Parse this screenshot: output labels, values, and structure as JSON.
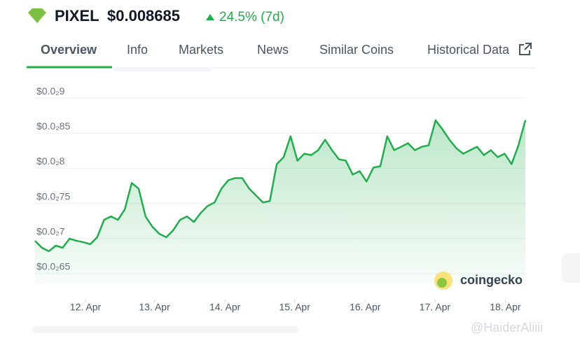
{
  "header": {
    "coin": "PIXEL",
    "price": "$0.008685",
    "change": "24.5% (7d)"
  },
  "tabs": [
    "Overview",
    "Info",
    "Markets",
    "News",
    "Similar Coins",
    "Historical Data"
  ],
  "chart_data": {
    "type": "line",
    "grid": true,
    "x": [
      0,
      1,
      2,
      3,
      4,
      5,
      6,
      7,
      8,
      9,
      10,
      11,
      12,
      13,
      14,
      15,
      16,
      17,
      18,
      19,
      20,
      21,
      22,
      23,
      24,
      25,
      26,
      27,
      28,
      29,
      30,
      31,
      32,
      33,
      34,
      35,
      36,
      37,
      38,
      39,
      40,
      41,
      42,
      43,
      44,
      45,
      46,
      47,
      48,
      49,
      50,
      51,
      52,
      53,
      54,
      55,
      56,
      57,
      58,
      59,
      60,
      61,
      62,
      63,
      64,
      65,
      66,
      67,
      68,
      69,
      70,
      71
    ],
    "series": [
      {
        "color": "#1fae4b",
        "values": [
          0.006967,
          0.006868,
          0.006818,
          0.006898,
          0.006868,
          0.006997,
          0.006967,
          0.006947,
          0.006918,
          0.007017,
          0.007265,
          0.007314,
          0.007265,
          0.007414,
          0.00779,
          0.007711,
          0.007314,
          0.007166,
          0.007066,
          0.007017,
          0.007116,
          0.007265,
          0.007314,
          0.007235,
          0.007364,
          0.007463,
          0.007513,
          0.007711,
          0.00783,
          0.00786,
          0.00786,
          0.007711,
          0.007612,
          0.007513,
          0.007533,
          0.008058,
          0.008158,
          0.008455,
          0.008108,
          0.008207,
          0.008187,
          0.008257,
          0.008406,
          0.008257,
          0.008128,
          0.008108,
          0.00791,
          0.007959,
          0.00781,
          0.008009,
          0.008029,
          0.008455,
          0.008257,
          0.008306,
          0.008356,
          0.008257,
          0.008306,
          0.008326,
          0.008683,
          0.008554,
          0.008406,
          0.008286,
          0.008207,
          0.008257,
          0.008306,
          0.008187,
          0.008257,
          0.008158,
          0.008207,
          0.008058,
          0.008326,
          0.008685
        ]
      }
    ],
    "xlim": [
      0,
      71
    ],
    "xticks": [
      {
        "value": 7.3,
        "label": "12. Apr"
      },
      {
        "value": 17.3,
        "label": "13. Apr"
      },
      {
        "value": 27.5,
        "label": "14. Apr"
      },
      {
        "value": 37.6,
        "label": "15. Apr"
      },
      {
        "value": 47.8,
        "label": "16. Apr"
      },
      {
        "value": 57.9,
        "label": "17. Apr"
      },
      {
        "value": 68.1,
        "label": "18. Apr"
      }
    ],
    "ylim": [
      0.00635,
      0.00915
    ],
    "yticks": [
      {
        "value": 0.0065,
        "label": "$0.0₂65"
      },
      {
        "value": 0.007,
        "label": "$0.0₂7"
      },
      {
        "value": 0.0075,
        "label": "$0.0₂75"
      },
      {
        "value": 0.008,
        "label": "$0.0₂8"
      },
      {
        "value": 0.0085,
        "label": "$0.0₂85"
      },
      {
        "value": 0.009,
        "label": "$0.0₂9"
      }
    ]
  },
  "watermark": {
    "brand": "coingecko",
    "handle": "@HaiderAliiii"
  }
}
